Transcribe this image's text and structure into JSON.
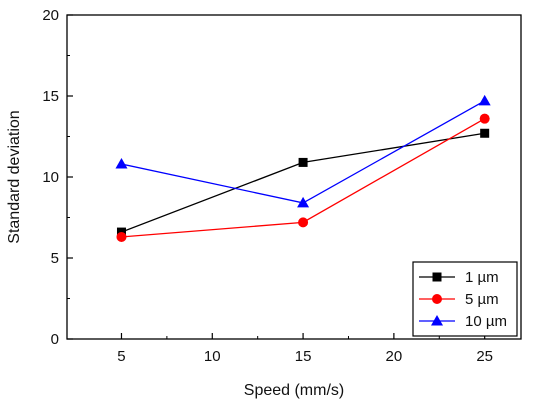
{
  "chart_data": {
    "type": "line",
    "title": "",
    "xlabel": "Speed (mm/s)",
    "ylabel": "Standard deviation",
    "xlim": [
      2,
      27
    ],
    "ylim": [
      0,
      20
    ],
    "x_ticks": [
      5,
      10,
      15,
      20,
      25
    ],
    "y_ticks": [
      0,
      5,
      10,
      15,
      20
    ],
    "grid": false,
    "legend_position": "bottom-right",
    "series": [
      {
        "name": "1 µm",
        "color": "#000000",
        "marker": "square",
        "x": [
          5,
          15,
          25
        ],
        "values": [
          6.6,
          10.9,
          12.7
        ]
      },
      {
        "name": "5 µm",
        "color": "#ff0000",
        "marker": "circle",
        "x": [
          5,
          15,
          25
        ],
        "values": [
          6.3,
          7.2,
          13.6
        ]
      },
      {
        "name": "10 µm",
        "color": "#0000ff",
        "marker": "triangle",
        "x": [
          5,
          15,
          25
        ],
        "values": [
          10.8,
          8.4,
          14.7
        ]
      }
    ]
  }
}
